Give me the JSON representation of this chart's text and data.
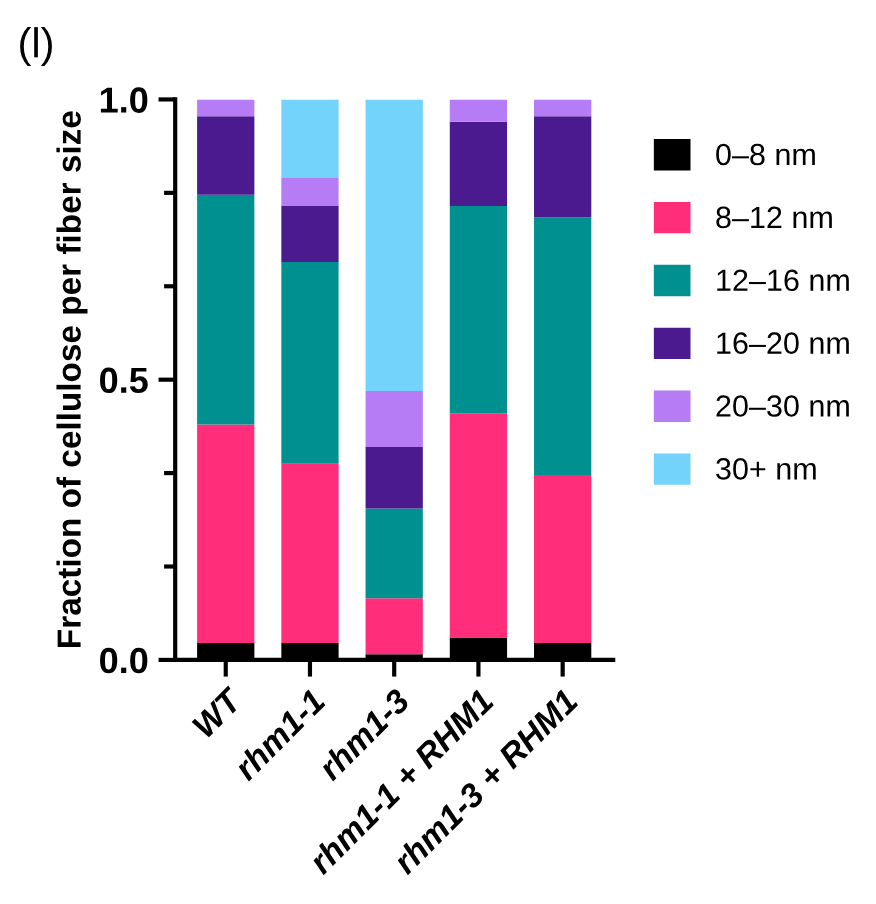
{
  "chart_data": {
    "type": "bar",
    "stacked": true,
    "title": "(l)",
    "ylabel": "Fraction of cellulose per fiber size",
    "categories": [
      "WT",
      "rhm1-1",
      "rhm1-3",
      "rhm1-1 + RHM1",
      "rhm1-3 + RHM1"
    ],
    "series": [
      {
        "name": "0–8 nm",
        "color": "#000000",
        "values": [
          0.03,
          0.03,
          0.01,
          0.04,
          0.03
        ]
      },
      {
        "name": "8–12 nm",
        "color": "#ff2d7a",
        "values": [
          0.39,
          0.32,
          0.1,
          0.4,
          0.3
        ]
      },
      {
        "name": "12–16 nm",
        "color": "#009090",
        "values": [
          0.41,
          0.36,
          0.16,
          0.37,
          0.46
        ]
      },
      {
        "name": "16–20 nm",
        "color": "#4b1a8f",
        "values": [
          0.14,
          0.1,
          0.11,
          0.15,
          0.18
        ]
      },
      {
        "name": "20–30 nm",
        "color": "#b57cf5",
        "values": [
          0.03,
          0.05,
          0.1,
          0.04,
          0.03
        ]
      },
      {
        "name": "30+ nm",
        "color": "#73d3fb",
        "values": [
          0,
          0.14,
          0.52,
          0,
          0
        ]
      }
    ],
    "ylim": [
      0,
      1.0
    ],
    "yticks": [
      {
        "value": 0,
        "label": "0.0"
      },
      {
        "value": 0.5,
        "label": "0.5"
      },
      {
        "value": 1.0,
        "label": "1.0"
      }
    ],
    "legend": "right",
    "grid": false
  }
}
